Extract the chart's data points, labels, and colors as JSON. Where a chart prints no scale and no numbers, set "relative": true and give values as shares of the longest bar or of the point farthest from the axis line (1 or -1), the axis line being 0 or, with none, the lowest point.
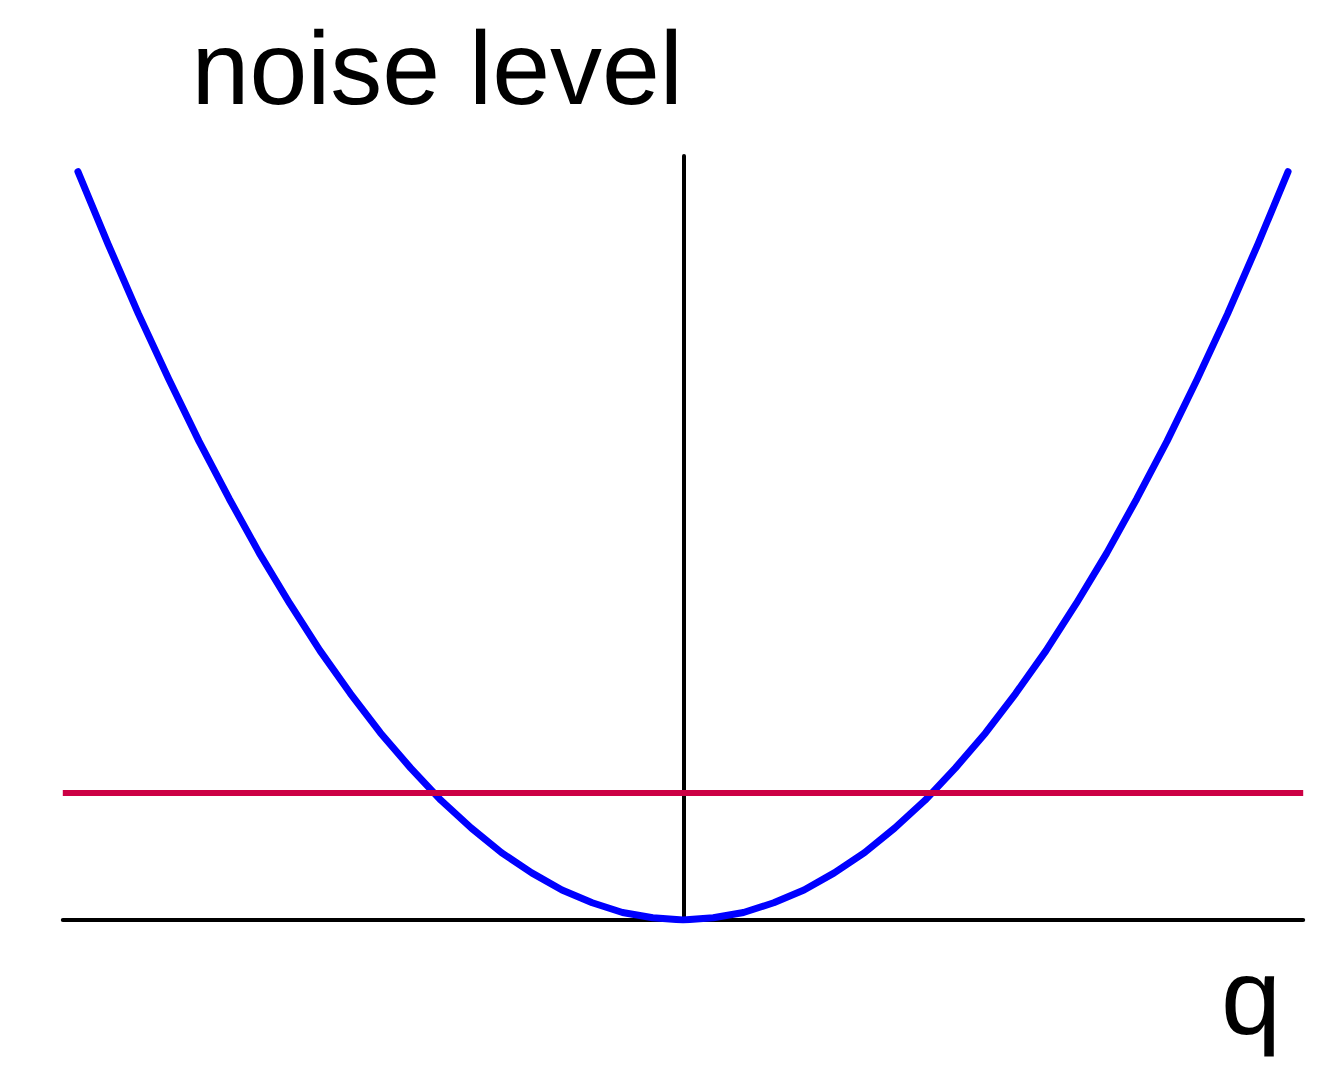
{
  "chart_data": {
    "type": "line",
    "relative": true,
    "ylabel": "noise level",
    "xlabel": "q",
    "categories": [
      null,
      null,
      null,
      null,
      null,
      null,
      null,
      null,
      null,
      null,
      null,
      null,
      null,
      null,
      null,
      null,
      null,
      null,
      null,
      null,
      null,
      null,
      null,
      null,
      null,
      null,
      null,
      null,
      null,
      null,
      null,
      null,
      null,
      null,
      null,
      null,
      null,
      null,
      null,
      null,
      null
    ],
    "series": [
      {
        "color": "#0000ff",
        "values": [
          1,
          0.903,
          0.81,
          0.723,
          0.64,
          0.563,
          0.49,
          0.423,
          0.36,
          0.303,
          0.25,
          0.203,
          0.16,
          0.123,
          0.09,
          0.063,
          0.04,
          0.023,
          0.01,
          0.003,
          0,
          0.003,
          0.01,
          0.023,
          0.04,
          0.063,
          0.09,
          0.123,
          0.16,
          0.203,
          0.25,
          0.303,
          0.36,
          0.423,
          0.49,
          0.563,
          0.64,
          0.723,
          0.81,
          0.903,
          1
        ]
      }
    ],
    "ref_lines": [
      {
        "axis": "y",
        "value": 0.166,
        "color": "#cc0044"
      }
    ]
  }
}
